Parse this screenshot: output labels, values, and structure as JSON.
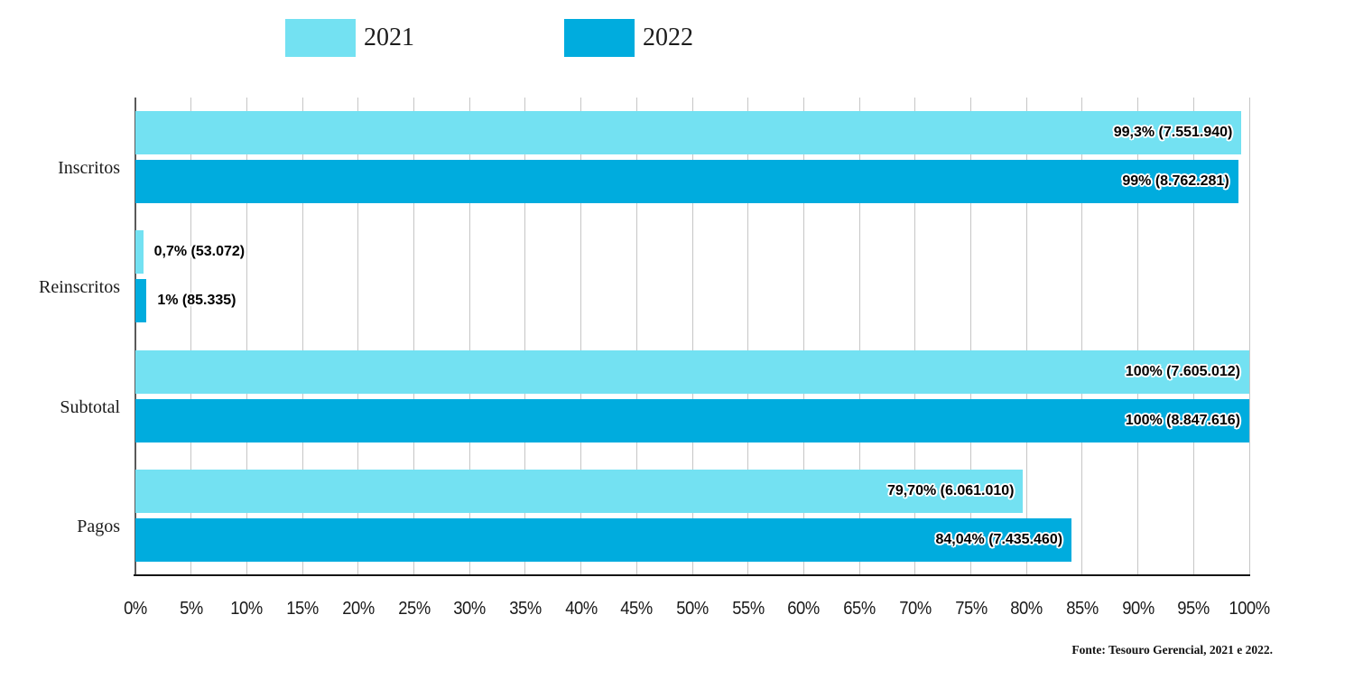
{
  "chart_data": {
    "type": "bar",
    "orientation": "horizontal",
    "title": "",
    "categories": [
      "Inscritos",
      "Reinscritos",
      "Subtotal",
      "Pagos"
    ],
    "series": [
      {
        "name": "2021",
        "color": "#73E1F2",
        "values": [
          99.3,
          0.7,
          100,
          79.7
        ],
        "value_labels": [
          "99,3% (7.551.940)",
          "0,7% (53.072)",
          "100% (7.605.012)",
          "79,70% (6.061.010)"
        ]
      },
      {
        "name": "2022",
        "color": "#00ACDE",
        "values": [
          99,
          1,
          100,
          84.04
        ],
        "value_labels": [
          "99% (8.762.281)",
          "1% (85.335)",
          "100% (8.847.616)",
          "84,04% (7.435.460)"
        ]
      }
    ],
    "x_axis": {
      "min": 0,
      "max": 100,
      "step": 5,
      "tick_labels": [
        "0%",
        "5%",
        "10%",
        "15%",
        "20%",
        "25%",
        "30%",
        "35%",
        "40%",
        "45%",
        "50%",
        "55%",
        "60%",
        "65%",
        "70%",
        "75%",
        "80%",
        "85%",
        "90%",
        "95%",
        "100%"
      ]
    },
    "grid": true,
    "legend_position": "top",
    "source_note": "Fonte: Tesouro Gerencial, 2021 e 2022."
  },
  "colors": {
    "grid_line": "#c6c6c6",
    "axis_left": "#5a5a5a",
    "axis_bottom": "#151515",
    "label_text": "#000000"
  }
}
